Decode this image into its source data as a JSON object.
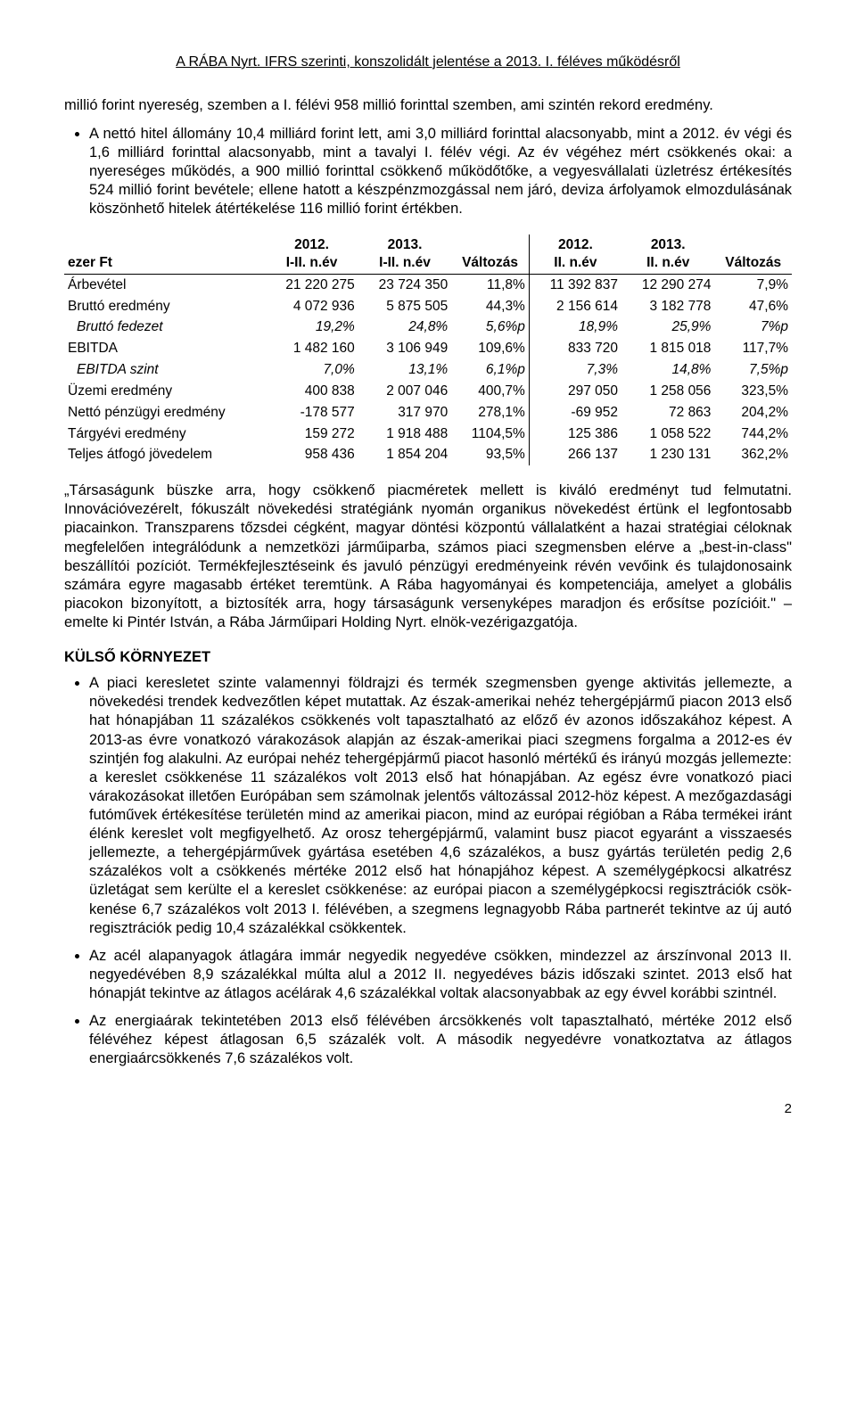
{
  "header": "A RÁBA Nyrt. IFRS szerinti, konszolidált jelentése a 2013. I. féléves működésről",
  "intro": "millió forint nyereség, szemben a I. félévi 958 millió forinttal szemben, ami szintén rekord eredmény.",
  "bullets": [
    "A nettó hitel állomány 10,4 milliárd forint lett, ami 3,0 milliárd forinttal alacsonyabb, mint a 2012. év végi és 1,6 milliárd forinttal alacsonyabb, mint a tavalyi I. félév végi. Az év végéhez mért csökkenés okai: a nyereséges működés, a 900 millió forinttal csökkenő működőtőke, a vegyesvállalati üzletrész értékesítés 524 millió forint bevétele; ellene hatott a készpénzmoz­gással nem járó, deviza árfolyamok elmozdulásának köszönhető hitelek átértékelése 116 mil­lió forint értékben."
  ],
  "table": {
    "col_headers": {
      "label": "ezer Ft",
      "c1": "2012.\nI-II. n.év",
      "c2": "2013.\nI-II. n.év",
      "c3": "Változás",
      "c4": "2012.\nII. n.év",
      "c5": "2013.\nII. n.év",
      "c6": "Változás"
    },
    "rows": [
      {
        "label": "Árbevétel",
        "c1": "21 220 275",
        "c2": "23 724 350",
        "c3": "11,8%",
        "c4": "11 392 837",
        "c5": "12 290 274",
        "c6": "7,9%",
        "italic": false
      },
      {
        "label": "Bruttó eredmény",
        "c1": "4 072 936",
        "c2": "5 875 505",
        "c3": "44,3%",
        "c4": "2 156 614",
        "c5": "3 182 778",
        "c6": "47,6%",
        "italic": false
      },
      {
        "label": "Bruttó fedezet",
        "c1": "19,2%",
        "c2": "24,8%",
        "c3": "5,6%p",
        "c4": "18,9%",
        "c5": "25,9%",
        "c6": "7%p",
        "italic": true
      },
      {
        "label": "EBITDA",
        "c1": "1 482 160",
        "c2": "3 106 949",
        "c3": "109,6%",
        "c4": "833 720",
        "c5": "1 815 018",
        "c6": "117,7%",
        "italic": false
      },
      {
        "label": "EBITDA szint",
        "c1": "7,0%",
        "c2": "13,1%",
        "c3": "6,1%p",
        "c4": "7,3%",
        "c5": "14,8%",
        "c6": "7,5%p",
        "italic": true
      },
      {
        "label": "Üzemi eredmény",
        "c1": "400 838",
        "c2": "2 007 046",
        "c3": "400,7%",
        "c4": "297 050",
        "c5": "1 258 056",
        "c6": "323,5%",
        "italic": false
      },
      {
        "label": "Nettó pénzügyi eredmény",
        "c1": "-178 577",
        "c2": "317 970",
        "c3": "278,1%",
        "c4": "-69 952",
        "c5": "72 863",
        "c6": "204,2%",
        "italic": false
      },
      {
        "label": "Tárgyévi eredmény",
        "c1": "159 272",
        "c2": "1 918 488",
        "c3": "1104,5%",
        "c4": "125 386",
        "c5": "1 058 522",
        "c6": "744,2%",
        "italic": false
      },
      {
        "label": "Teljes átfogó jövedelem",
        "c1": "958 436",
        "c2": "1 854 204",
        "c3": "93,5%",
        "c4": "266 137",
        "c5": "1 230 131",
        "c6": "362,2%",
        "italic": false
      }
    ]
  },
  "quote": "„Társaságunk büszke arra, hogy csökkenő piacméretek mellett is kiváló eredményt tud felmu­tatni. Innovációvezérelt, fókuszált növekedési stratégiánk nyomán organikus növekedést értünk el legfontosabb piacainkon. Transzparens tőzsdei cégként, magyar döntési központú vállalat­ként a hazai stratégiai céloknak megfelelően integrálódunk a nemzetközi járműiparba, számos piaci szegmensben elérve a „best-in-class\" beszállítói pozíciót. Termékfejlesztéseink és javuló pénzügyi eredményeink révén vevőink és tulajdonosaink számára egyre magasabb értéket te­remtünk. A Rába hagyományai és kompetenciája, amelyet a globális piacokon bizonyított, a biztosíték arra, hogy társaságunk versenyképes maradjon és erősítse pozícióit.\" – emelte ki Pintér István, a Rába Járműipari Holding Nyrt. elnök-vezérigazgatója.",
  "section_title": "KÜLSŐ KÖRNYEZET",
  "env_bullets": [
    "A piaci keresletet szinte valamennyi földrajzi és termék szegmensben gyenge aktivitás jel­lemezte, a növekedési trendek kedvezőtlen képet mutattak. Az észak-amerikai nehéz teher­gépjármű piacon 2013 első hat hónapjában 11 százalékos csökkenés volt tapasztalható az előző év azonos időszakához képest. A 2013-as évre vonatkozó várakozások alapján az észak-amerikai piaci szegmens forgalma a 2012-es év szintjén fog alakulni. Az európai nehéz tehergépjármű piacot hasonló mértékű és irányú mozgás jellemezte: a ke­reslet csökkenése 11 százalékos volt 2013 első hat hónapjában. Az egész évre vonatkozó piaci várakozásokat illetően Európában sem számolnak jelentős változással 2012-höz ké­pest. A mezőgazdasági futóművek értékesítése területén mind az amerikai piacon, mind az európai régióban a Rába termékei iránt élénk kereslet volt megfigyelhető. Az orosz teher­gépjármű, valamint busz piacot egyaránt a visszaesés jellemezte, a tehergépjárművek gyár­tása esetében 4,6 százalékos, a busz gyártás területén pedig 2,6 százalékos volt a csökke­nés mértéke 2012 első hat hónapjához képest. A személygépkocsi alkatrész üzletágat sem kerülte el a kereslet csökkenése: az európai piacon a személygépkocsi regisztrációk csök­kenése 6,7 százalékos volt 2013 I. félévében, a szegmens legnagyobb Rába partnerét te­kintve az új autó regisztrációk pedig 10,4 százalékkal csökkentek.",
    "Az acél alapanyagok átlagára immár negyedik negyedéve csökken, mindezzel az árszínvo­nal 2013 II. negyedévében 8,9 százalékkal múlta alul a 2012 II. negyedéves bázis időszaki szintet. 2013 első hat hónapját tekintve az átlagos acélárak 4,6 százalékkal voltak alacso­nyabbak az egy évvel korábbi szintnél.",
    "Az energiaárak tekintetében 2013 első félévében árcsökkenés volt tapasztalható, mértéke 2012 első félévéhez képest átlagosan 6,5 százalék volt. A második negyedévre vonatkoz­tatva az átlagos energiaárcsökkenés 7,6 százalékos volt."
  ],
  "page_number": "2"
}
